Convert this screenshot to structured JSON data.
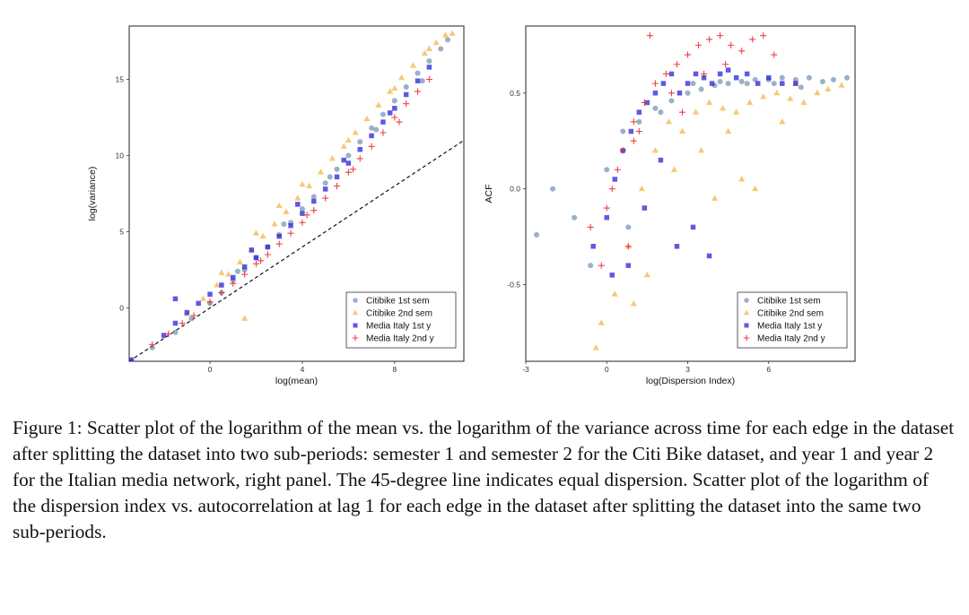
{
  "caption": "Figure 1: Scatter plot of the logarithm of the mean vs. the logarithm of the variance across time for each edge in the dataset after splitting the dataset into two sub-periods: semester 1 and semester 2 for the Citi Bike dataset, and year 1 and year 2 for the Italian media network, right panel. The 45-degree line indicates equal dispersion. Scatter plot of the logarithm of the dispersion index vs. autocorrelation at lag 1 for each edge in the dataset after splitting the dataset into the same two sub-periods.",
  "series_styles": [
    {
      "name": "Citibike 1st sem",
      "marker": "circle",
      "color": "#7a97b6"
    },
    {
      "name": "Citibike 2nd sem",
      "marker": "triangle",
      "color": "#f2b13c"
    },
    {
      "name": "Media Italy 1st y",
      "marker": "square",
      "color": "#2a22d9"
    },
    {
      "name": "Media Italy 2nd y",
      "marker": "plus",
      "color": "#e8212c"
    }
  ],
  "chart_data": [
    {
      "type": "scatter",
      "title": "",
      "xlabel": "log(mean)",
      "ylabel": "log(variance)",
      "xlim": [
        -3.5,
        11
      ],
      "ylim": [
        -3.5,
        18.5
      ],
      "xticks": [
        0,
        4,
        8
      ],
      "yticks": [
        0,
        5,
        10,
        15
      ],
      "grid": false,
      "legend_position": "bottom-right",
      "reference_line": {
        "label": "45-degree line",
        "slope": 1,
        "intercept": 0,
        "style": "dashed"
      },
      "series": [
        {
          "name": "Citibike 1st sem",
          "marker": "circle",
          "x": [
            -2.5,
            -1.5,
            -0.8,
            0.0,
            0.5,
            1.0,
            1.5,
            2.0,
            2.5,
            3.0,
            3.5,
            4.0,
            4.5,
            5.0,
            5.5,
            6.0,
            6.5,
            7.0,
            7.5,
            8.0,
            8.5,
            9.0,
            9.5,
            10.0,
            10.3,
            1.2,
            3.2,
            5.2,
            7.2,
            9.2
          ],
          "y": [
            -2.6,
            -1.6,
            -0.7,
            0.3,
            1.0,
            1.8,
            2.5,
            3.3,
            4.0,
            4.8,
            5.6,
            6.5,
            7.3,
            8.2,
            9.1,
            10.0,
            10.9,
            11.8,
            12.7,
            13.6,
            14.5,
            15.4,
            16.2,
            17.0,
            17.6,
            2.4,
            5.5,
            8.6,
            11.7,
            14.9
          ]
        },
        {
          "name": "Citibike 2nd sem",
          "marker": "triangle",
          "x": [
            -1.0,
            -0.3,
            0.3,
            0.8,
            1.3,
            1.8,
            2.3,
            2.8,
            3.3,
            3.8,
            4.3,
            4.8,
            5.3,
            5.8,
            6.3,
            6.8,
            7.3,
            7.8,
            8.3,
            8.8,
            9.3,
            9.8,
            10.2,
            10.5,
            0.5,
            2.0,
            4.0,
            6.0,
            8.0,
            9.5,
            1.5,
            3.0
          ],
          "y": [
            -0.4,
            0.6,
            1.5,
            2.2,
            3.0,
            3.8,
            4.7,
            5.5,
            6.3,
            7.2,
            8.0,
            8.9,
            9.8,
            10.6,
            11.5,
            12.4,
            13.3,
            14.2,
            15.1,
            15.9,
            16.7,
            17.4,
            17.9,
            18.0,
            2.3,
            4.9,
            8.1,
            11.0,
            14.4,
            17.0,
            -0.7,
            6.7
          ]
        },
        {
          "name": "Media Italy 1st y",
          "marker": "square",
          "x": [
            -3.4,
            -2.0,
            -1.5,
            -1.0,
            -0.5,
            0.0,
            0.5,
            1.0,
            1.5,
            2.0,
            2.5,
            3.0,
            3.5,
            4.0,
            4.5,
            5.0,
            5.5,
            6.0,
            6.5,
            7.0,
            7.5,
            8.0,
            8.5,
            9.0,
            9.5,
            1.8,
            3.8,
            5.8,
            7.8,
            -1.5
          ],
          "y": [
            -3.4,
            -1.8,
            -1.0,
            -0.3,
            0.3,
            0.9,
            1.5,
            2.0,
            2.7,
            3.3,
            4.0,
            4.7,
            5.4,
            6.2,
            7.0,
            7.8,
            8.6,
            9.5,
            10.4,
            11.3,
            12.2,
            13.1,
            14.0,
            14.9,
            15.8,
            3.8,
            6.8,
            9.7,
            12.8,
            0.6
          ]
        },
        {
          "name": "Media Italy 2nd y",
          "marker": "plus",
          "x": [
            -2.5,
            -1.8,
            -1.2,
            -0.7,
            0.0,
            0.5,
            1.0,
            1.5,
            2.0,
            2.5,
            3.0,
            3.5,
            4.0,
            4.5,
            5.0,
            5.5,
            6.0,
            6.5,
            7.0,
            7.5,
            8.0,
            8.5,
            9.0,
            9.5,
            2.2,
            4.2,
            6.2,
            8.2
          ],
          "y": [
            -2.4,
            -1.7,
            -1.0,
            -0.5,
            0.4,
            1.0,
            1.6,
            2.2,
            2.9,
            3.5,
            4.2,
            4.9,
            5.6,
            6.4,
            7.2,
            8.0,
            8.9,
            9.8,
            10.6,
            11.5,
            12.5,
            13.4,
            14.2,
            15.0,
            3.1,
            6.1,
            9.1,
            12.2
          ]
        }
      ]
    },
    {
      "type": "scatter",
      "title": "",
      "xlabel": "log(Dispersion Index)",
      "ylabel": "ACF",
      "xlim": [
        -3,
        9.2
      ],
      "ylim": [
        -0.9,
        0.85
      ],
      "xticks": [
        -3,
        0,
        3,
        6
      ],
      "yticks": [
        -0.5,
        0.0,
        0.5
      ],
      "grid": false,
      "legend_position": "bottom-right",
      "series": [
        {
          "name": "Citibike 1st sem",
          "marker": "circle",
          "x": [
            -2.6,
            -2.0,
            -1.2,
            -0.6,
            0.0,
            0.6,
            1.2,
            1.8,
            2.4,
            3.0,
            3.5,
            4.0,
            4.5,
            5.0,
            5.5,
            6.0,
            6.5,
            7.0,
            7.5,
            8.0,
            8.4,
            8.9,
            3.2,
            4.2,
            5.2,
            6.2,
            7.2,
            2.0,
            0.8
          ],
          "y": [
            -0.24,
            0.0,
            -0.15,
            -0.4,
            0.1,
            0.3,
            0.35,
            0.42,
            0.46,
            0.5,
            0.52,
            0.54,
            0.55,
            0.56,
            0.57,
            0.57,
            0.58,
            0.57,
            0.58,
            0.56,
            0.57,
            0.58,
            0.55,
            0.56,
            0.55,
            0.55,
            0.53,
            0.4,
            -0.2
          ]
        },
        {
          "name": "Citibike 2nd sem",
          "marker": "triangle",
          "x": [
            -0.4,
            -0.2,
            0.3,
            0.8,
            1.3,
            1.8,
            2.3,
            2.8,
            3.3,
            3.8,
            4.3,
            4.8,
            5.3,
            5.8,
            6.3,
            6.8,
            7.3,
            7.8,
            8.2,
            8.7,
            2.5,
            3.5,
            4.5,
            5.5,
            6.5,
            1.0,
            1.5,
            4.0,
            5.0,
            7.0
          ],
          "y": [
            -0.83,
            -0.7,
            -0.55,
            -0.3,
            0.0,
            0.2,
            0.35,
            0.3,
            0.4,
            0.45,
            0.42,
            0.4,
            0.45,
            0.48,
            0.5,
            0.47,
            0.45,
            0.5,
            0.52,
            0.54,
            0.1,
            0.2,
            0.3,
            0.0,
            0.35,
            -0.6,
            -0.45,
            -0.05,
            0.05,
            0.55
          ]
        },
        {
          "name": "Media Italy 1st y",
          "marker": "square",
          "x": [
            -0.5,
            0.0,
            0.3,
            0.6,
            0.9,
            1.2,
            1.5,
            1.8,
            2.1,
            2.4,
            2.7,
            3.0,
            3.3,
            3.6,
            3.9,
            4.2,
            4.5,
            4.8,
            5.2,
            5.6,
            6.0,
            6.5,
            7.0,
            0.2,
            0.8,
            1.4,
            2.0,
            2.6,
            3.2,
            3.8
          ],
          "y": [
            -0.3,
            -0.15,
            0.05,
            0.2,
            0.3,
            0.4,
            0.45,
            0.5,
            0.55,
            0.6,
            0.5,
            0.55,
            0.6,
            0.58,
            0.55,
            0.6,
            0.62,
            0.58,
            0.6,
            0.55,
            0.58,
            0.55,
            0.55,
            -0.45,
            -0.4,
            -0.1,
            0.15,
            -0.3,
            -0.2,
            -0.35
          ]
        },
        {
          "name": "Media Italy 2nd y",
          "marker": "plus",
          "x": [
            -0.6,
            -0.2,
            0.2,
            0.6,
            1.0,
            1.4,
            1.8,
            2.2,
            2.6,
            3.0,
            3.4,
            3.8,
            4.2,
            4.6,
            5.0,
            5.4,
            5.8,
            6.2,
            0.4,
            1.2,
            1.6,
            2.4,
            3.6,
            4.4,
            0.8,
            0.0,
            1.0,
            2.8
          ],
          "y": [
            -0.2,
            -0.4,
            0.0,
            0.2,
            0.35,
            0.45,
            0.55,
            0.6,
            0.65,
            0.7,
            0.75,
            0.78,
            0.8,
            0.75,
            0.72,
            0.78,
            0.8,
            0.7,
            0.1,
            0.3,
            0.8,
            0.5,
            0.6,
            0.65,
            -0.3,
            -0.1,
            0.25,
            0.4
          ]
        }
      ]
    }
  ]
}
